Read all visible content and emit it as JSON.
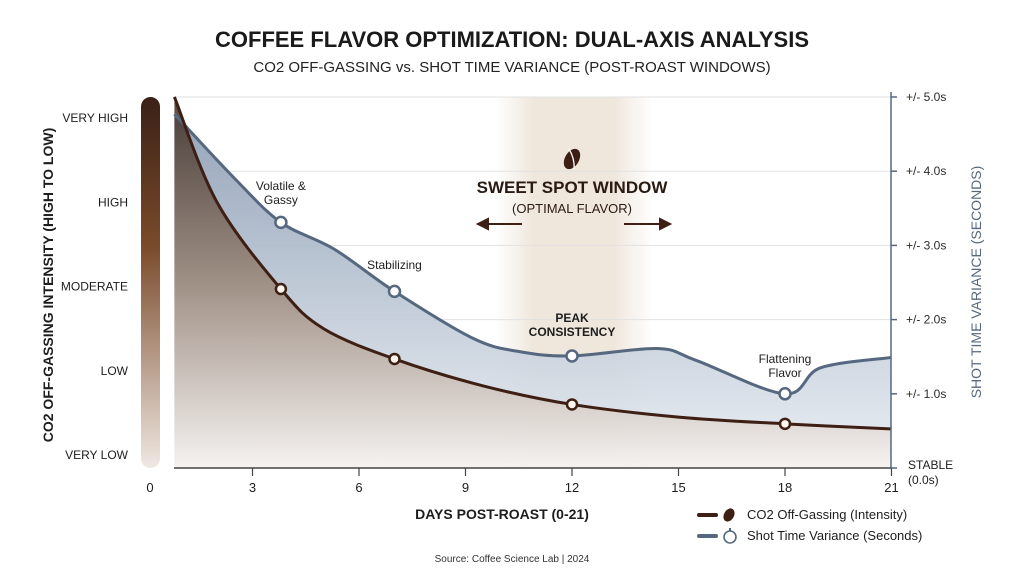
{
  "chart_data": {
    "type": "line",
    "title": "COFFEE FLAVOR OPTIMIZATION: DUAL-AXIS ANALYSIS",
    "subtitle": "CO2 OFF-GASSING vs. SHOT TIME VARIANCE (POST-ROAST WINDOWS)",
    "xlabel": "DAYS POST-ROAST (0-21)",
    "ylabel_left": "CO2 OFF-GASSING INTENSITY (HIGH TO LOW)",
    "ylabel_right": "SHOT TIME VARIANCE (SECONDS)",
    "xlim": [
      0,
      21
    ],
    "x_ticks": [
      "0",
      "3",
      "6",
      "9",
      "12",
      "15",
      "18",
      "21"
    ],
    "y_left_ticks": [
      "VERY LOW",
      "LOW",
      "MODERATE",
      "HIGH",
      "VERY HIGH"
    ],
    "y_left_range": [
      1,
      5
    ],
    "y_right_ticks": [
      "STABLE (0.0s)",
      "+/- 1.0s",
      "+/- 2.0s",
      "+/- 3.0s",
      "+/- 4.0s",
      "+/- 5.0s"
    ],
    "y_right_range": [
      0,
      5
    ],
    "grid": true,
    "legend_placement": "bottom-right",
    "series": [
      {
        "name": "CO2 Off-Gassing (Intensity)",
        "axis": "left",
        "color": "#3d1f14",
        "icon": "coffee-bean-icon",
        "x": [
          0.8,
          2,
          3.8,
          5,
          7,
          9.5,
          12,
          15,
          18,
          21
        ],
        "y": [
          5.25,
          4.0,
          2.97,
          2.5,
          2.14,
          1.82,
          1.6,
          1.45,
          1.37,
          1.31
        ],
        "markers_at": [
          3.8,
          7,
          12,
          18
        ]
      },
      {
        "name": "Shot Time Variance (Seconds)",
        "axis": "right",
        "color": "#56687f",
        "icon": "stopwatch-icon",
        "x": [
          0.8,
          2.5,
          3.8,
          5.3,
          7,
          9.2,
          10.5,
          12,
          14.4,
          15.5,
          18,
          19,
          21
        ],
        "y": [
          4.77,
          3.9,
          3.31,
          2.95,
          2.38,
          1.75,
          1.57,
          1.51,
          1.61,
          1.45,
          1.0,
          1.35,
          1.49
        ],
        "markers_at": [
          3.8,
          7,
          12,
          18
        ]
      }
    ],
    "annotations": [
      {
        "text": [
          "Volatile &",
          "Gassy"
        ],
        "x": 3.8
      },
      {
        "text": [
          "Stabilizing"
        ],
        "x": 7
      },
      {
        "text": [
          "PEAK",
          "CONSISTENCY"
        ],
        "x": 12
      },
      {
        "text": [
          "Flattening",
          "Flavor"
        ],
        "x": 18
      }
    ],
    "highlight": {
      "title": "SWEET SPOT WINDOW",
      "subtitle": "(OPTIMAL FLAVOR)",
      "x_range": [
        10.1,
        14
      ],
      "icon": "coffee-bean-icon"
    },
    "source": "Source: Coffee Science Lab | 2024"
  }
}
